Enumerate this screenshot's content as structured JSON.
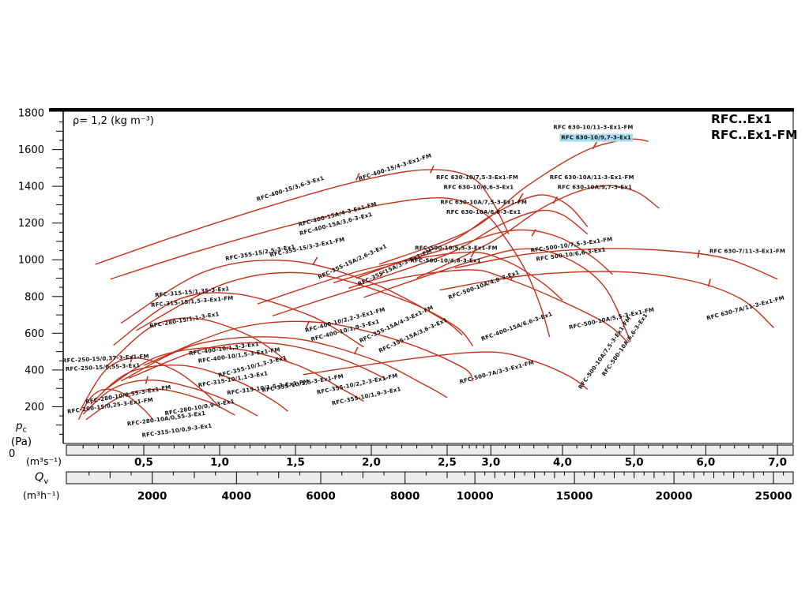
{
  "chart_data": {
    "type": "line",
    "density_note": "ρ= 1,2 (kg m⁻³)",
    "legend": [
      "RFC..Ex1",
      "RFC..Ex1-FM"
    ],
    "colors": {
      "curve": "#c4301b",
      "highlight": "#a9dcef",
      "ruler_bg": "#ececec",
      "axis": "#000000"
    },
    "axes": {
      "y": {
        "symbol": "p",
        "symbol_sub": "c",
        "unit": "(Pa)",
        "zero_label": "0",
        "min": 0,
        "max": 1800,
        "tick_step": 200,
        "minor_step": 50,
        "tick_labels": [
          "200",
          "400",
          "600",
          "800",
          "1000",
          "1200",
          "1400",
          "1600",
          "1800"
        ]
      },
      "x1": {
        "unit": "(m³s⁻¹)",
        "tick_values": [
          0.5,
          1.0,
          1.5,
          2.0,
          2.5,
          3.0,
          4.0,
          5.0,
          6.0,
          7.0
        ],
        "tick_labels": [
          "0,5",
          "1,0",
          "1,5",
          "2,0",
          "2,5",
          "3,0",
          "4,0",
          "5,0",
          "6,0",
          "7,0"
        ]
      },
      "x2": {
        "symbol": "Q",
        "symbol_sub": "v",
        "unit": "(m³h⁻¹)",
        "tick_values": [
          2000,
          4000,
          6000,
          8000,
          10000,
          15000,
          20000,
          25000
        ],
        "tick_labels": [
          "2000",
          "4000",
          "6000",
          "8000",
          "10000",
          "15000",
          "20000",
          "25000"
        ]
      }
    },
    "series": [
      {
        "name": "RFC-200-15",
        "points": [
          [
            0.07,
            130
          ],
          [
            0.15,
            250
          ],
          [
            0.25,
            295
          ],
          [
            0.38,
            265
          ],
          [
            0.5,
            185
          ],
          [
            0.56,
            130
          ]
        ]
      },
      {
        "name": "RFC-250-15",
        "points": [
          [
            0.08,
            180
          ],
          [
            0.25,
            400
          ],
          [
            0.45,
            465
          ],
          [
            0.7,
            400
          ],
          [
            0.9,
            280
          ],
          [
            1.0,
            195
          ]
        ]
      },
      {
        "name": "RFC-280-10",
        "points": [
          [
            0.1,
            160
          ],
          [
            0.3,
            300
          ],
          [
            0.55,
            345
          ],
          [
            0.85,
            295
          ],
          [
            1.1,
            215
          ],
          [
            1.25,
            150
          ]
        ]
      },
      {
        "name": "RFC-280-10A",
        "points": [
          [
            0.12,
            130
          ],
          [
            0.35,
            255
          ],
          [
            0.6,
            295
          ],
          [
            0.9,
            235
          ],
          [
            1.1,
            155
          ]
        ]
      },
      {
        "name": "RFC-315-10",
        "points": [
          [
            0.15,
            215
          ],
          [
            0.4,
            385
          ],
          [
            0.75,
            425
          ],
          [
            1.1,
            345
          ],
          [
            1.35,
            235
          ],
          [
            1.45,
            175
          ]
        ]
      },
      {
        "name": "RFC-355-10 (1,3/1,5)",
        "points": [
          [
            0.25,
            295
          ],
          [
            0.6,
            475
          ],
          [
            1.05,
            520
          ],
          [
            1.5,
            430
          ],
          [
            1.8,
            300
          ],
          [
            1.95,
            230
          ]
        ]
      },
      {
        "name": "RFC-355-10 (1,9/2,2)",
        "points": [
          [
            0.35,
            340
          ],
          [
            0.85,
            540
          ],
          [
            1.45,
            575
          ],
          [
            2.0,
            460
          ],
          [
            2.35,
            320
          ],
          [
            2.5,
            250
          ]
        ]
      },
      {
        "name": "RFC-400-10 (1,3/1,5)",
        "points": [
          [
            0.4,
            355
          ],
          [
            0.9,
            515
          ],
          [
            1.35,
            545
          ],
          [
            1.8,
            460
          ],
          [
            2.1,
            350
          ]
        ]
      },
      {
        "name": "RFC-400-10 (1,9/2,2)",
        "points": [
          [
            0.5,
            425
          ],
          [
            1.1,
            625
          ],
          [
            1.65,
            660
          ],
          [
            2.2,
            555
          ],
          [
            2.6,
            415
          ],
          [
            2.75,
            340
          ]
        ]
      },
      {
        "name": "RFC-280-15",
        "points": [
          [
            0.25,
            415
          ],
          [
            0.55,
            635
          ],
          [
            0.85,
            680
          ],
          [
            1.2,
            585
          ],
          [
            1.45,
            445
          ]
        ]
      },
      {
        "name": "RFC-315-15",
        "points": [
          [
            0.3,
            535
          ],
          [
            0.7,
            775
          ],
          [
            1.1,
            815
          ],
          [
            1.6,
            695
          ],
          [
            1.95,
            525
          ]
        ]
      },
      {
        "name": "RFC-355-15",
        "points": [
          [
            0.35,
            655
          ],
          [
            0.9,
            935
          ],
          [
            1.45,
            995
          ],
          [
            2.0,
            875
          ],
          [
            2.45,
            685
          ],
          [
            2.6,
            590
          ]
        ]
      },
      {
        "name": "RFC-355-15A",
        "points": [
          [
            0.45,
            615
          ],
          [
            1.05,
            875
          ],
          [
            1.6,
            925
          ],
          [
            2.2,
            785
          ],
          [
            2.55,
            640
          ],
          [
            2.75,
            530
          ]
        ]
      },
      {
        "name": "RFC-400-15",
        "points": [
          [
            0.18,
            975
          ],
          [
            0.7,
            1125
          ],
          [
            1.3,
            1285
          ],
          [
            1.9,
            1425
          ],
          [
            2.35,
            1490
          ],
          [
            2.7,
            1455
          ],
          [
            3.0,
            1330
          ],
          [
            3.25,
            1140
          ]
        ]
      },
      {
        "name": "RFC-400-15A",
        "points": [
          [
            0.28,
            895
          ],
          [
            0.85,
            1045
          ],
          [
            1.5,
            1195
          ],
          [
            2.1,
            1305
          ],
          [
            2.5,
            1335
          ],
          [
            2.9,
            1255
          ],
          [
            3.2,
            1120
          ],
          [
            3.5,
            930
          ],
          [
            3.7,
            740
          ],
          [
            3.82,
            580
          ]
        ]
      },
      {
        "name": "RFC-500-10 (4,8/5,5)",
        "points": [
          [
            1.25,
            760
          ],
          [
            1.95,
            945
          ],
          [
            2.6,
            1040
          ],
          [
            3.2,
            995
          ],
          [
            3.7,
            880
          ],
          [
            4.0,
            780
          ]
        ]
      },
      {
        "name": "RFC-500-10 (6,6/7,5)",
        "points": [
          [
            1.75,
            875
          ],
          [
            2.55,
            1075
          ],
          [
            3.3,
            1160
          ],
          [
            3.9,
            1130
          ],
          [
            4.4,
            1020
          ],
          [
            4.7,
            920
          ]
        ]
      },
      {
        "name": "RFC-500-10A (4,8/5,5)",
        "points": [
          [
            1.35,
            695
          ],
          [
            2.05,
            875
          ],
          [
            2.65,
            945
          ],
          [
            3.2,
            900
          ],
          [
            3.9,
            790
          ],
          [
            4.6,
            655
          ],
          [
            4.9,
            555
          ]
        ]
      },
      {
        "name": "RFC-500-10A (6,6/7,5)",
        "points": [
          [
            1.95,
            795
          ],
          [
            2.75,
            995
          ],
          [
            3.5,
            1060
          ],
          [
            4.1,
            1000
          ],
          [
            4.6,
            845
          ],
          [
            4.95,
            555
          ]
        ]
      },
      {
        "name": "RFC-630-10 (6,6/7,5)",
        "points": [
          [
            1.9,
            900
          ],
          [
            2.5,
            1090
          ],
          [
            3.0,
            1240
          ],
          [
            3.5,
            1335
          ],
          [
            3.8,
            1350
          ],
          [
            4.1,
            1290
          ],
          [
            4.35,
            1180
          ]
        ]
      },
      {
        "name": "RFC-630-10A (6,6/7,5)",
        "points": [
          [
            1.85,
            845
          ],
          [
            2.5,
            1030
          ],
          [
            3.1,
            1185
          ],
          [
            3.65,
            1265
          ],
          [
            4.0,
            1245
          ],
          [
            4.35,
            1140
          ]
        ]
      },
      {
        "name": "RFC-630-10 (9,7/11)",
        "points": [
          [
            2.05,
            975
          ],
          [
            2.7,
            1160
          ],
          [
            3.5,
            1400
          ],
          [
            4.3,
            1590
          ],
          [
            4.9,
            1655
          ],
          [
            5.2,
            1645
          ]
        ]
      },
      {
        "name": "RFC-630-10A (9,7/11)",
        "points": [
          [
            2.3,
            900
          ],
          [
            3.0,
            1095
          ],
          [
            3.8,
            1300
          ],
          [
            4.5,
            1400
          ],
          [
            5.0,
            1375
          ],
          [
            5.35,
            1280
          ]
        ]
      },
      {
        "name": "RFC-630-7",
        "points": [
          [
            2.55,
            955
          ],
          [
            3.5,
            1030
          ],
          [
            4.5,
            1060
          ],
          [
            5.5,
            1048
          ],
          [
            6.3,
            1005
          ],
          [
            7.0,
            895
          ]
        ]
      },
      {
        "name": "RFC-630-7A",
        "points": [
          [
            2.45,
            835
          ],
          [
            3.5,
            915
          ],
          [
            4.8,
            935
          ],
          [
            5.8,
            885
          ],
          [
            6.5,
            785
          ],
          [
            6.95,
            630
          ]
        ]
      },
      {
        "name": "RFC-500-7A",
        "points": [
          [
            1.55,
            375
          ],
          [
            2.3,
            465
          ],
          [
            3.0,
            498
          ],
          [
            3.6,
            448
          ],
          [
            4.1,
            365
          ],
          [
            4.35,
            295
          ]
        ]
      }
    ],
    "curve_ticks": [
      [
        0.42,
        462,
        -75
      ],
      [
        0.52,
        345,
        -75
      ],
      [
        1.91,
        1452,
        -65
      ],
      [
        2.4,
        1492,
        -65
      ],
      [
        1.63,
        995,
        -60
      ],
      [
        2.07,
        925,
        -60
      ],
      [
        1.58,
        648,
        -65
      ],
      [
        1.9,
        505,
        -65
      ],
      [
        2.75,
        1032,
        -60
      ],
      [
        3.6,
        1148,
        -60
      ],
      [
        4.45,
        1622,
        -60
      ],
      [
        3.42,
        1342,
        -60
      ],
      [
        3.9,
        1325,
        -60
      ],
      [
        3.3,
        905,
        -60
      ],
      [
        5.9,
        1032,
        -80
      ],
      [
        6.05,
        875,
        -75
      ]
    ],
    "labels": [
      {
        "t": "RFC-400-15/3,6-3-Ex1",
        "q": 1.47,
        "p": 1378,
        "r": -18
      },
      {
        "t": "RFC-400-15/4-3-Ex1-FM",
        "q": 2.16,
        "p": 1495,
        "r": -18
      },
      {
        "t": "RFC 630-10/7,5-3-Ex1-FM",
        "q": 2.81,
        "p": 1440,
        "r": 0
      },
      {
        "t": "RFC 630-10/6,6-3-Ex1",
        "q": 2.83,
        "p": 1386,
        "r": 0
      },
      {
        "t": "RFC 630-10/11-3-Ex1-FM",
        "q": 4.43,
        "p": 1712,
        "r": 0
      },
      {
        "t": "RFC 630-10/9,7-3-Ex1",
        "q": 4.47,
        "p": 1656,
        "r": 0,
        "hl": true
      },
      {
        "t": "RFC 630-10A/11-3-Ex1-FM",
        "q": 4.41,
        "p": 1440,
        "r": 0
      },
      {
        "t": "RFC 630-10A/9,7-3-Ex1",
        "q": 4.45,
        "p": 1386,
        "r": 0
      },
      {
        "t": "RFC 630-10A/7,5-3-Ex1-FM",
        "q": 2.9,
        "p": 1303,
        "r": 0
      },
      {
        "t": "RFC 630-10A/6,6-3-Ex1",
        "q": 2.9,
        "p": 1251,
        "r": 0
      },
      {
        "t": "RFC-400-15A/4-3-Ex1-FM",
        "q": 1.78,
        "p": 1238,
        "r": -15
      },
      {
        "t": "RFC-400-15A/3,6-3-Ex1",
        "q": 1.77,
        "p": 1186,
        "r": -15
      },
      {
        "t": "RFC-355-15/2,5-3-Ex1",
        "q": 1.27,
        "p": 1029,
        "r": -10
      },
      {
        "t": "RFC-355-15/3-3-Ex1-FM",
        "q": 1.58,
        "p": 1059,
        "r": -12
      },
      {
        "t": "RFC-355-15A/2,6-3-Ex1",
        "q": 1.88,
        "p": 981,
        "r": -25
      },
      {
        "t": "RFC-355-15A/3-3-Ex1-FM",
        "q": 2.16,
        "p": 950,
        "r": -25
      },
      {
        "t": "RFC-500-10/5,5-3-Ex1-FM",
        "q": 2.56,
        "p": 1055,
        "r": 0
      },
      {
        "t": "RFC-500-10/4,8-3-Ex1",
        "q": 2.49,
        "p": 985,
        "r": 0
      },
      {
        "t": "RFC-500-10/7,5-3-Ex1-FM",
        "q": 4.13,
        "p": 1072,
        "r": -8
      },
      {
        "t": "RFC 500-10/6,6-3-Ex1",
        "q": 4.12,
        "p": 1020,
        "r": -8
      },
      {
        "t": "RFC 630-7/11-3-Ex1-FM",
        "q": 6.58,
        "p": 1037,
        "r": 0
      },
      {
        "t": "RFC-500-10A/4,8-3-Ex1",
        "q": 2.91,
        "p": 854,
        "r": -20
      },
      {
        "t": "RFC-315-15/1,35-3-Ex1",
        "q": 0.82,
        "p": 815,
        "r": -5
      },
      {
        "t": "RFC-315-15/1,5-3-Ex1-FM",
        "q": 0.82,
        "p": 763,
        "r": -5
      },
      {
        "t": "RFC 630-7A/11-3-Ex1-FM",
        "q": 6.56,
        "p": 728,
        "r": -15
      },
      {
        "t": "RFC-280-15/1,1-3-Ex1",
        "q": 0.77,
        "p": 663,
        "r": -10
      },
      {
        "t": "RFC-400-10/2,2-3-Ex1-FM",
        "q": 1.83,
        "p": 663,
        "r": -15
      },
      {
        "t": "RFC-400-10/1,9-3-Ex1",
        "q": 1.83,
        "p": 606,
        "r": -15
      },
      {
        "t": "RFC-355-15A/4-3-Ex1-FM",
        "q": 2.17,
        "p": 641,
        "r": -25
      },
      {
        "t": "RFC-355-15A/3,6-3-Ex1",
        "q": 2.28,
        "p": 580,
        "r": -25
      },
      {
        "t": "RFC-400-15A/6,6-3-Ex1",
        "q": 3.37,
        "p": 628,
        "r": -20
      },
      {
        "t": "RFC-500-10A/7,5-3-Ex1-FM",
        "q": 4.61,
        "p": 488,
        "r": -55
      },
      {
        "t": "RFC-500-10A/5,5-3-Ex1-FM",
        "q": 4.69,
        "p": 671,
        "r": -12
      },
      {
        "t": "RFC-500-10A/6,6-3-Ex1",
        "q": 4.89,
        "p": 532,
        "r": -55
      },
      {
        "t": "RFC-500-7A/3-3-Ex1-FM",
        "q": 3.09,
        "p": 379,
        "r": -15
      },
      {
        "t": "RFC-250-15/0,37-3-Ex1-FM",
        "q": 0.25,
        "p": 453,
        "r": -3
      },
      {
        "t": "RFC-250-15/0,55-3-Ex1",
        "q": 0.23,
        "p": 405,
        "r": -3
      },
      {
        "t": "RFC-400-10/1,3-3-Ex1",
        "q": 1.03,
        "p": 506,
        "r": -8
      },
      {
        "t": "RFC-400-10/1,5-3-Ex1-FM",
        "q": 1.13,
        "p": 470,
        "r": -8
      },
      {
        "t": "RFC-355-10/1,3-3-Ex1",
        "q": 1.22,
        "p": 410,
        "r": -15
      },
      {
        "t": "RFC-315-10/1,1-3-Ex1",
        "q": 1.09,
        "p": 340,
        "r": -10
      },
      {
        "t": "RFC-315-10/1,5-3-Ex1-FM",
        "q": 1.32,
        "p": 296,
        "r": -8
      },
      {
        "t": "RFC-355-10/1,5-3-Ex1-FM",
        "q": 1.55,
        "p": 318,
        "r": -10
      },
      {
        "t": "RFC-355-10/2,2-3-Ex1-FM",
        "q": 1.91,
        "p": 314,
        "r": -12
      },
      {
        "t": "RFC-355-10/1,9-3-Ex1",
        "q": 1.97,
        "p": 248,
        "r": -12
      },
      {
        "t": "RFC-280-10/0,55-3-Ex1-FM",
        "q": 0.4,
        "p": 257,
        "r": -10
      },
      {
        "t": "RFC-200-15/0,25-3-Ex1-FM",
        "q": 0.28,
        "p": 196,
        "r": -8
      },
      {
        "t": "RFC-280-10/0,9-3-Ex1",
        "q": 0.87,
        "p": 187,
        "r": -10
      },
      {
        "t": "RFC-280-10A/0,55-3-Ex1",
        "q": 0.65,
        "p": 126,
        "r": -8
      },
      {
        "t": "RFC-315-10/0,9-3-Ex1",
        "q": 0.72,
        "p": 61,
        "r": -8
      }
    ]
  }
}
